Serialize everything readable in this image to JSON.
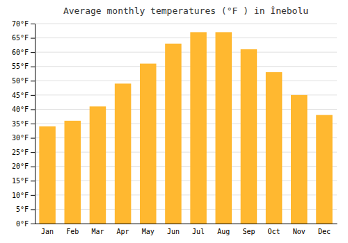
{
  "chart_data": {
    "type": "bar",
    "title": "Average monthly temperatures (°F ) in İnebolu",
    "categories": [
      "Jan",
      "Feb",
      "Mar",
      "Apr",
      "May",
      "Jun",
      "Jul",
      "Aug",
      "Sep",
      "Oct",
      "Nov",
      "Dec"
    ],
    "values": [
      34,
      36,
      41,
      49,
      56,
      63,
      67,
      67,
      61,
      53,
      45,
      38
    ],
    "color": "#FFB830",
    "ylim": [
      0,
      70
    ],
    "yticks": [
      {
        "value": 0,
        "label": "0°F"
      },
      {
        "value": 5,
        "label": "5°F"
      },
      {
        "value": 10,
        "label": "10°F"
      },
      {
        "value": 15,
        "label": "15°F"
      },
      {
        "value": 20,
        "label": "20°F"
      },
      {
        "value": 25,
        "label": "25°F"
      },
      {
        "value": 30,
        "label": "30°F"
      },
      {
        "value": 35,
        "label": "35°F"
      },
      {
        "value": 40,
        "label": "40°F"
      },
      {
        "value": 45,
        "label": "45°F"
      },
      {
        "value": 50,
        "label": "50°F"
      },
      {
        "value": 55,
        "label": "55°F"
      },
      {
        "value": 60,
        "label": "60°F"
      },
      {
        "value": 65,
        "label": "65°F"
      },
      {
        "value": 70,
        "label": "70°F"
      }
    ],
    "grid": true
  }
}
